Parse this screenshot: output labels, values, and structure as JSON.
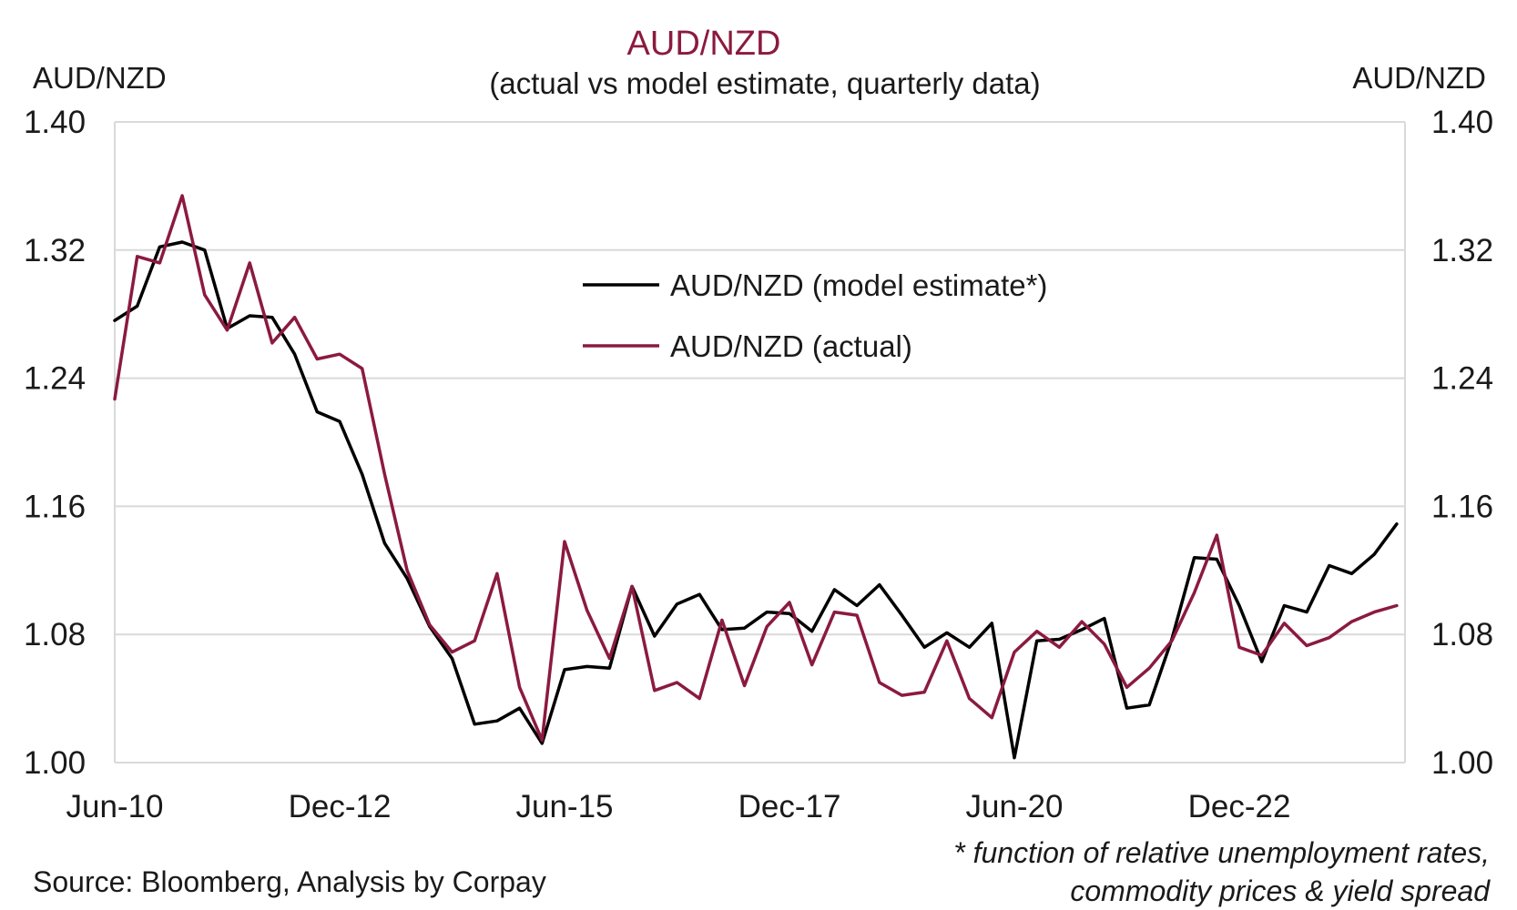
{
  "chart_data": {
    "type": "line",
    "title": "AUD/NZD",
    "subtitle": "(actual vs model estimate, quarterly data)",
    "ylabel_left": "AUD/NZD",
    "ylabel_right": "AUD/NZD",
    "ylim": [
      1.0,
      1.4
    ],
    "yticks": [
      "1.00",
      "1.08",
      "1.16",
      "1.24",
      "1.32",
      "1.40"
    ],
    "x_start": "Jun-10",
    "x_period": "quarterly",
    "xticks": [
      {
        "label": "Jun-10",
        "index": 0
      },
      {
        "label": "Dec-12",
        "index": 10
      },
      {
        "label": "Jun-15",
        "index": 20
      },
      {
        "label": "Dec-17",
        "index": 30
      },
      {
        "label": "Jun-20",
        "index": 40
      },
      {
        "label": "Dec-22",
        "index": 50
      }
    ],
    "grid": true,
    "legend_position": "upper-center",
    "series": [
      {
        "name": "AUD/NZD (model estimate*)",
        "color": "#000000",
        "values": [
          1.276,
          1.285,
          1.322,
          1.325,
          1.32,
          1.271,
          1.279,
          1.278,
          1.255,
          1.219,
          1.213,
          1.18,
          1.137,
          1.115,
          1.085,
          1.065,
          1.024,
          1.026,
          1.034,
          1.012,
          1.058,
          1.06,
          1.059,
          1.11,
          1.079,
          1.099,
          1.105,
          1.083,
          1.084,
          1.094,
          1.093,
          1.082,
          1.108,
          1.098,
          1.111,
          1.092,
          1.072,
          1.081,
          1.072,
          1.087,
          1.003,
          1.076,
          1.077,
          1.083,
          1.09,
          1.034,
          1.036,
          1.077,
          1.128,
          1.127,
          1.098,
          1.063,
          1.098,
          1.094,
          1.123,
          1.118,
          1.13,
          1.149
        ]
      },
      {
        "name": "AUD/NZD (actual)",
        "color": "#8b1a3f",
        "values": [
          1.227,
          1.316,
          1.312,
          1.354,
          1.292,
          1.27,
          1.312,
          1.262,
          1.278,
          1.252,
          1.255,
          1.246,
          1.18,
          1.12,
          1.086,
          1.069,
          1.076,
          1.118,
          1.047,
          1.014,
          1.138,
          1.095,
          1.065,
          1.11,
          1.045,
          1.05,
          1.04,
          1.089,
          1.048,
          1.085,
          1.1,
          1.061,
          1.094,
          1.092,
          1.05,
          1.042,
          1.044,
          1.076,
          1.04,
          1.028,
          1.069,
          1.082,
          1.072,
          1.088,
          1.074,
          1.047,
          1.059,
          1.076,
          1.106,
          1.142,
          1.072,
          1.067,
          1.087,
          1.073,
          1.078,
          1.088,
          1.094,
          1.098
        ]
      }
    ]
  },
  "source": "Source: Bloomberg, Analysis by Corpay",
  "footnote": [
    "* function of relative unemployment rates,",
    "commodity prices & yield spread"
  ]
}
